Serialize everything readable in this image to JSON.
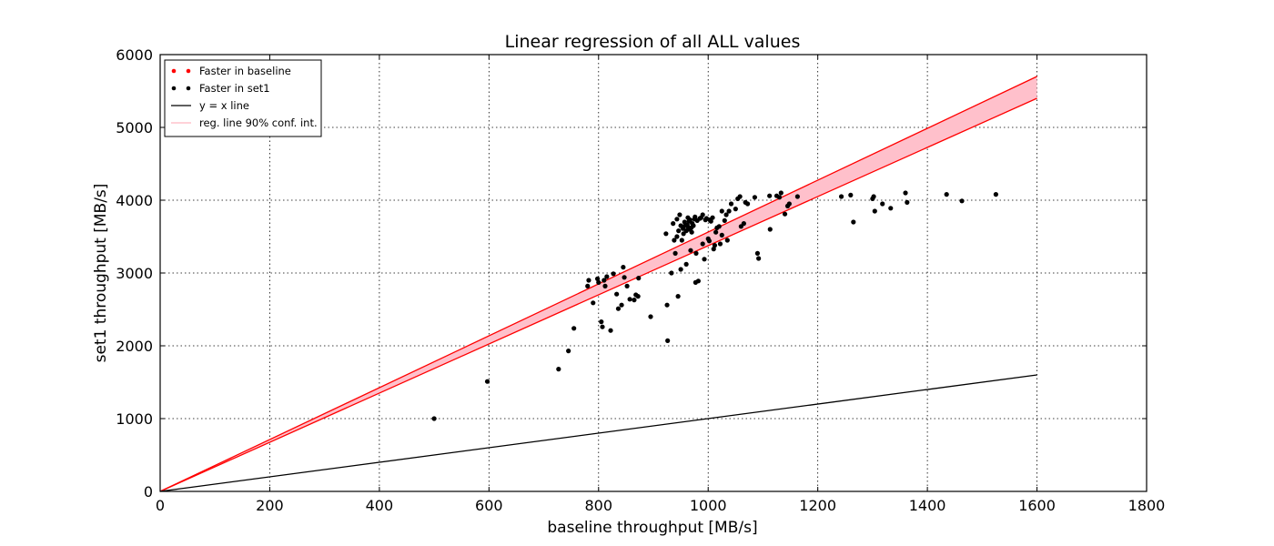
{
  "chart_data": {
    "type": "scatter",
    "title": "Linear regression of all ALL values",
    "xlabel": "baseline throughput [MB/s]",
    "ylabel": "set1 throughput [MB/s]",
    "xlim": [
      0,
      1800
    ],
    "ylim": [
      0,
      6000
    ],
    "xticks": [
      0,
      200,
      400,
      600,
      800,
      1000,
      1200,
      1400,
      1600,
      1800
    ],
    "yticks": [
      0,
      1000,
      2000,
      3000,
      4000,
      5000,
      6000
    ],
    "grid": true,
    "legend_placement": "top-left",
    "legend": [
      {
        "label": "Faster in baseline",
        "marker": "dot",
        "color": "#ff0000"
      },
      {
        "label": "Faster in set1",
        "marker": "dot",
        "color": "#000000"
      },
      {
        "label": "y = x line",
        "marker": "line",
        "color": "#000000"
      },
      {
        "label": "reg. line 90% conf. int.",
        "marker": "line",
        "color": "#ffb6c1"
      }
    ],
    "series": [
      {
        "name": "Faster in set1",
        "color": "#000000",
        "points": [
          [
            500,
            1000
          ],
          [
            597,
            1510
          ],
          [
            727,
            1680
          ],
          [
            745,
            1930
          ],
          [
            755,
            2240
          ],
          [
            780,
            2820
          ],
          [
            782,
            2900
          ],
          [
            790,
            2590
          ],
          [
            798,
            2920
          ],
          [
            800,
            2870
          ],
          [
            805,
            2330
          ],
          [
            807,
            2260
          ],
          [
            810,
            2900
          ],
          [
            812,
            2820
          ],
          [
            815,
            2950
          ],
          [
            822,
            2210
          ],
          [
            827,
            2990
          ],
          [
            833,
            2710
          ],
          [
            836,
            2510
          ],
          [
            842,
            2560
          ],
          [
            845,
            3080
          ],
          [
            847,
            2940
          ],
          [
            852,
            2820
          ],
          [
            857,
            2640
          ],
          [
            865,
            2630
          ],
          [
            868,
            2700
          ],
          [
            872,
            2680
          ],
          [
            873,
            2930
          ],
          [
            895,
            2400
          ],
          [
            923,
            3540
          ],
          [
            925,
            2560
          ],
          [
            926,
            2070
          ],
          [
            933,
            3000
          ],
          [
            936,
            3680
          ],
          [
            938,
            3450
          ],
          [
            940,
            3270
          ],
          [
            943,
            3740
          ],
          [
            943,
            3500
          ],
          [
            945,
            2680
          ],
          [
            946,
            3580
          ],
          [
            948,
            3800
          ],
          [
            950,
            3050
          ],
          [
            950,
            3650
          ],
          [
            952,
            3450
          ],
          [
            954,
            3610
          ],
          [
            955,
            3540
          ],
          [
            957,
            3700
          ],
          [
            958,
            3650
          ],
          [
            960,
            3580
          ],
          [
            960,
            3120
          ],
          [
            962,
            3660
          ],
          [
            963,
            3760
          ],
          [
            964,
            3620
          ],
          [
            965,
            3710
          ],
          [
            966,
            3600
          ],
          [
            967,
            3730
          ],
          [
            968,
            3310
          ],
          [
            969,
            3620
          ],
          [
            970,
            3560
          ],
          [
            971,
            3680
          ],
          [
            973,
            3650
          ],
          [
            975,
            3740
          ],
          [
            976,
            3770
          ],
          [
            977,
            2870
          ],
          [
            978,
            3270
          ],
          [
            980,
            3720
          ],
          [
            982,
            2890
          ],
          [
            985,
            3750
          ],
          [
            987,
            3760
          ],
          [
            990,
            3800
          ],
          [
            990,
            3400
          ],
          [
            993,
            3190
          ],
          [
            995,
            3730
          ],
          [
            997,
            3750
          ],
          [
            1000,
            3470
          ],
          [
            1002,
            3440
          ],
          [
            1003,
            3730
          ],
          [
            1005,
            3710
          ],
          [
            1008,
            3760
          ],
          [
            1010,
            3330
          ],
          [
            1012,
            3380
          ],
          [
            1014,
            3560
          ],
          [
            1016,
            3620
          ],
          [
            1020,
            3640
          ],
          [
            1022,
            3400
          ],
          [
            1025,
            3850
          ],
          [
            1025,
            3520
          ],
          [
            1030,
            3720
          ],
          [
            1033,
            3800
          ],
          [
            1035,
            3450
          ],
          [
            1038,
            3850
          ],
          [
            1042,
            3950
          ],
          [
            1050,
            3880
          ],
          [
            1054,
            4020
          ],
          [
            1058,
            4050
          ],
          [
            1060,
            3640
          ],
          [
            1065,
            3680
          ],
          [
            1068,
            3970
          ],
          [
            1072,
            3950
          ],
          [
            1085,
            4040
          ],
          [
            1090,
            3270
          ],
          [
            1092,
            3200
          ],
          [
            1112,
            4060
          ],
          [
            1113,
            3600
          ],
          [
            1125,
            4060
          ],
          [
            1130,
            4040
          ],
          [
            1133,
            4100
          ],
          [
            1140,
            3810
          ],
          [
            1145,
            3920
          ],
          [
            1148,
            3950
          ],
          [
            1163,
            4050
          ],
          [
            1243,
            4050
          ],
          [
            1260,
            4070
          ],
          [
            1265,
            3700
          ],
          [
            1300,
            4020
          ],
          [
            1302,
            4050
          ],
          [
            1304,
            3850
          ],
          [
            1318,
            3950
          ],
          [
            1333,
            3890
          ],
          [
            1360,
            4100
          ],
          [
            1363,
            3970
          ],
          [
            1435,
            4080
          ],
          [
            1463,
            3990
          ],
          [
            1525,
            4080
          ]
        ]
      }
    ],
    "reference_line": {
      "label": "y = x line",
      "x": [
        0,
        1600
      ],
      "y": [
        0,
        1600
      ],
      "color": "#000000"
    },
    "confidence_band": {
      "label": "reg. line 90% conf. int.",
      "x": [
        0,
        1600
      ],
      "upper": [
        0,
        5700
      ],
      "lower": [
        0,
        5400
      ],
      "line_color": "#ff0000",
      "fill_color": "#ffc0cb"
    }
  }
}
